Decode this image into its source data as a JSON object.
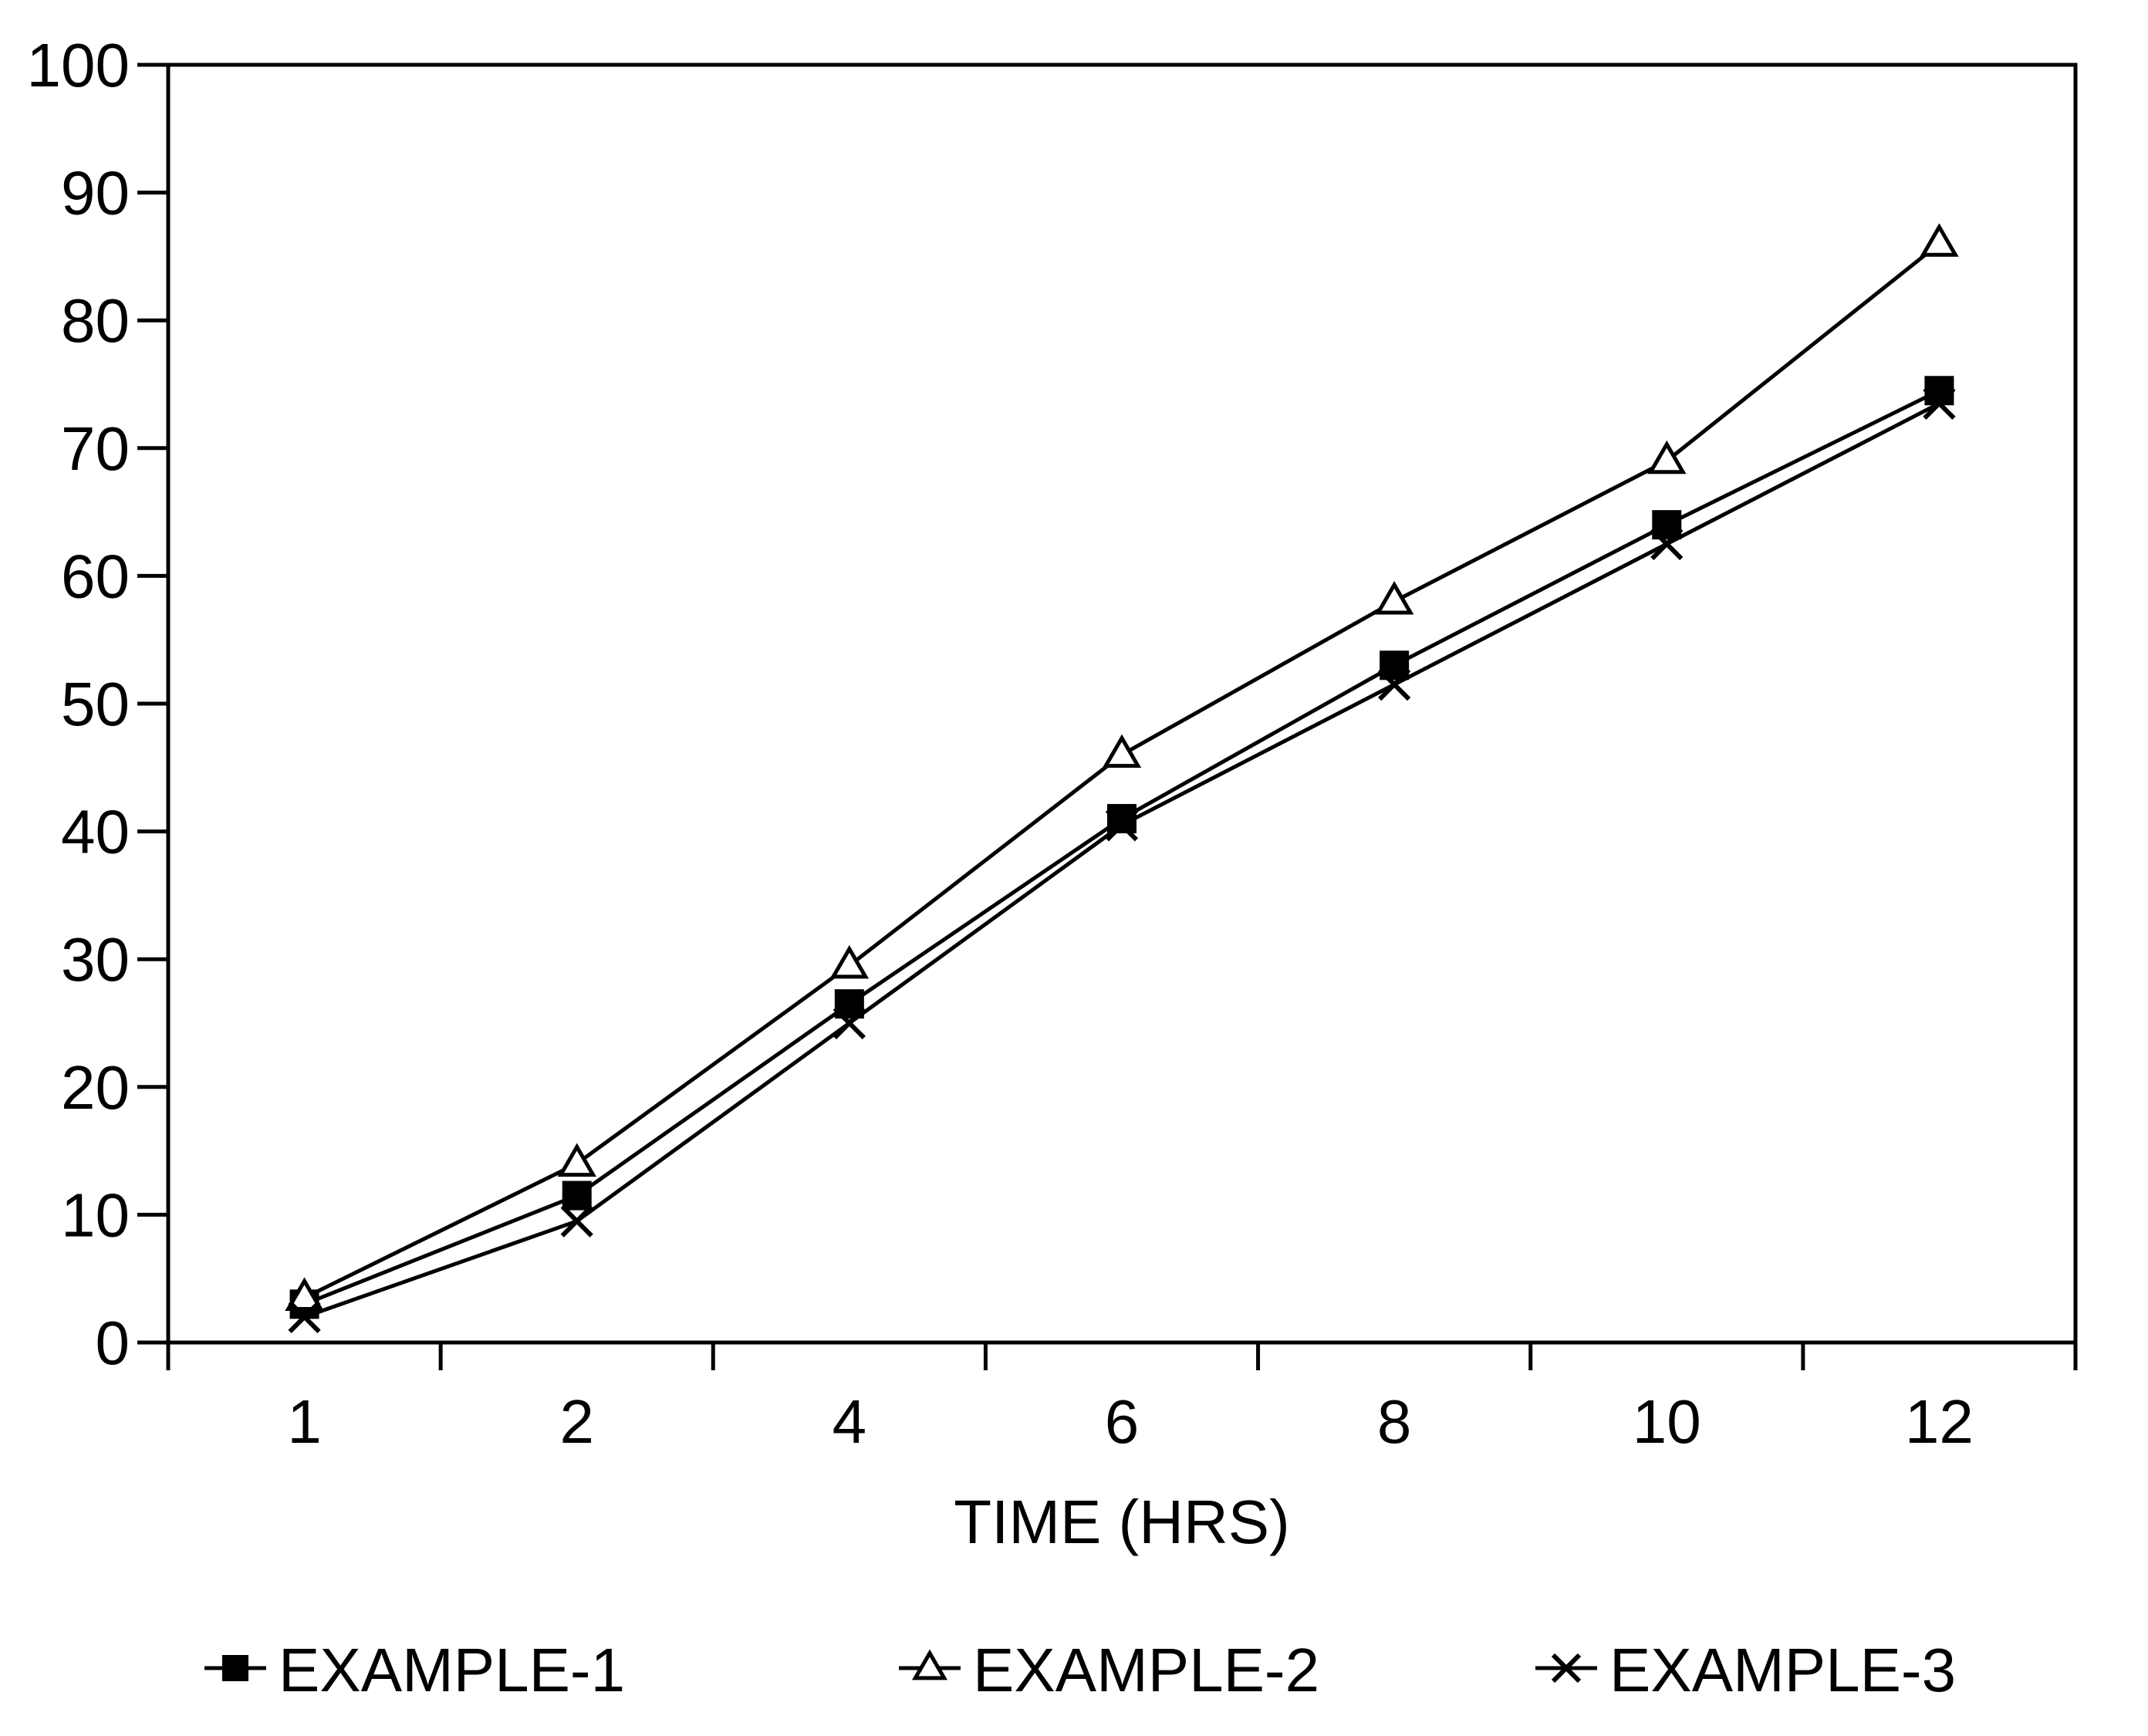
{
  "chart_data": {
    "type": "line",
    "title": "",
    "xlabel": "TIME (HRS)",
    "ylabel": "",
    "categories": [
      "1",
      "2",
      "4",
      "6",
      "8",
      "10",
      "12"
    ],
    "ylim": [
      0,
      100
    ],
    "yticks": [
      "0",
      "10",
      "20",
      "30",
      "40",
      "50",
      "60",
      "70",
      "80",
      "90",
      "100"
    ],
    "grid": false,
    "legend_position": "bottom",
    "series": [
      {
        "name": "EXAMPLE-1",
        "marker": "filled-square",
        "color": "#000000",
        "values": [
          3,
          11.5,
          26.5,
          41,
          53,
          64,
          74.5
        ]
      },
      {
        "name": "EXAMPLE-2",
        "marker": "open-triangle",
        "color": "#000000",
        "values": [
          3.5,
          14,
          29.5,
          46,
          58,
          69,
          86
        ]
      },
      {
        "name": "EXAMPLE-3",
        "marker": "x-cross",
        "color": "#000000",
        "values": [
          2,
          9.5,
          25,
          40.5,
          51.5,
          62.5,
          73.5
        ]
      }
    ]
  }
}
